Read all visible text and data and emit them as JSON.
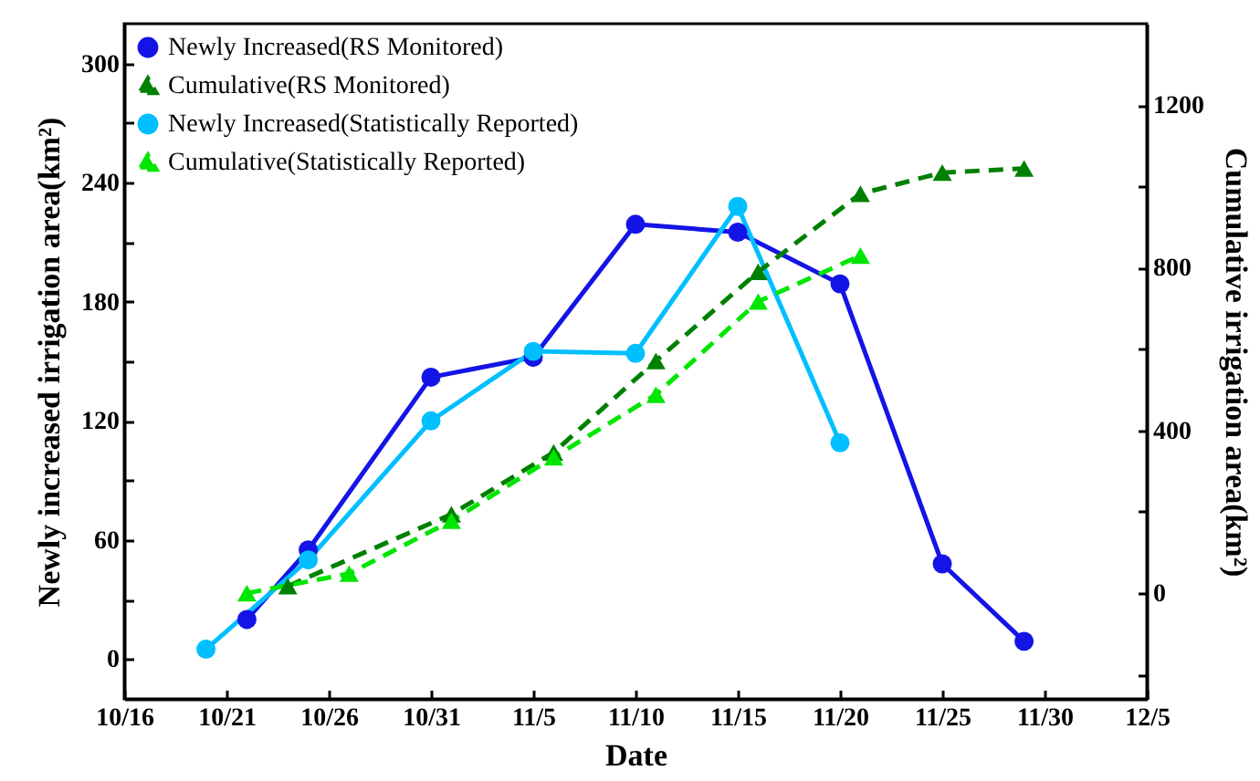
{
  "chart_data": {
    "type": "line",
    "xlabel": "Date",
    "ylabel": "Newly increased irrigation area(km²)",
    "y2label": "Cumulative irrigation area(km²)",
    "xlim": [
      "--10-16",
      "--12-05"
    ],
    "xticks": [
      {
        "value": "--10-16",
        "label": "10/16"
      },
      {
        "value": "--10-21",
        "label": "10/21"
      },
      {
        "value": "--10-26",
        "label": "10/26"
      },
      {
        "value": "--10-31",
        "label": "10/31"
      },
      {
        "value": "--11-05",
        "label": "11/5"
      },
      {
        "value": "--11-10",
        "label": "11/10"
      },
      {
        "value": "--11-15",
        "label": "11/15"
      },
      {
        "value": "--11-20",
        "label": "11/20"
      },
      {
        "value": "--11-25",
        "label": "11/25"
      },
      {
        "value": "--11-30",
        "label": "11/30"
      },
      {
        "value": "--12-05",
        "label": "12/5"
      }
    ],
    "ylim": [
      -20,
      320
    ],
    "yticks": [
      0,
      {
        "value": 30,
        "label": null
      },
      60,
      {
        "value": 90,
        "label": null
      },
      120,
      {
        "value": 150,
        "label": null
      },
      180,
      {
        "value": 210,
        "label": null
      },
      240,
      {
        "value": 270,
        "label": null
      },
      300
    ],
    "y2lim": [
      -260,
      1400
    ],
    "y2ticks": [
      {
        "value": -200,
        "label": null
      },
      0,
      {
        "value": 200,
        "label": null
      },
      400,
      {
        "value": 600,
        "label": null
      },
      800,
      {
        "value": 1000,
        "label": null
      },
      1200
    ],
    "grid": false,
    "legend": "top left",
    "series": [
      {
        "name": "Newly Increased(RS Monitored)",
        "color": "#1414e6",
        "marker": "circle",
        "line_style": "solid",
        "x": [
          "--10-22",
          "--10-25",
          "--10-31",
          "--11-05",
          "--11-10",
          "--11-15",
          "--11-20",
          "--11-25",
          "--11-29"
        ],
        "values": [
          20,
          55,
          142,
          152,
          219,
          215,
          189,
          48,
          9
        ]
      },
      {
        "name": "Cumulative(RS Monitored)",
        "color": "#008000",
        "marker": "triangle",
        "line_style": "dashed",
        "axis": "y2",
        "x": [
          "--10-24",
          "--11-01",
          "--11-06",
          "--11-11",
          "--11-16",
          "--11-21",
          "--11-25",
          "--11-29"
        ],
        "values": [
          17,
          194,
          346,
          571,
          790,
          982,
          1034,
          1044
        ]
      },
      {
        "name": "Newly Increased(Statistically Reported)",
        "color": "#00bfff",
        "marker": "circle",
        "line_style": "solid",
        "x": [
          "--10-20",
          "--10-25",
          "--10-31",
          "--11-05",
          "--11-10",
          "--11-15",
          "--11-20"
        ],
        "values": [
          5,
          50,
          120,
          155,
          154,
          228,
          109
        ]
      },
      {
        "name": "Cumulative(Statistically Reported)",
        "color": "#00e600",
        "marker": "triangle",
        "line_style": "dashed",
        "axis": "y2",
        "x": [
          "--10-22",
          "--10-27",
          "--11-01",
          "--11-06",
          "--11-11",
          "--11-16",
          "--11-21"
        ],
        "values": [
          0,
          48,
          178,
          334,
          488,
          717,
          830
        ]
      }
    ]
  }
}
